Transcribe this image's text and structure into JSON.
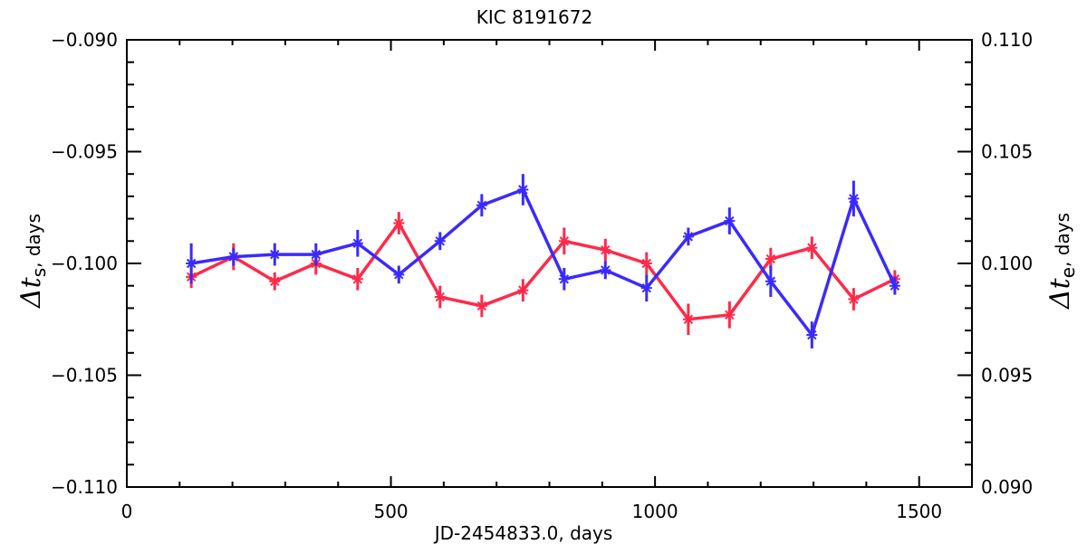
{
  "chart_data": {
    "type": "line",
    "title": "KIC 8191672",
    "xlabel": "JD-2454833.0, days",
    "ylabel_left": {
      "symbol": "Δt",
      "subscript": "s",
      "suffix": ", days"
    },
    "ylabel_right": {
      "symbol": "Δt",
      "subscript": "e",
      "suffix": ", days"
    },
    "xlim": [
      0,
      1600
    ],
    "ylim_left": [
      -0.09,
      -0.11
    ],
    "ylim_right": [
      0.11,
      0.09
    ],
    "x_ticks": [
      "0",
      "500",
      "1000",
      "1500"
    ],
    "y_ticks_left": [
      "-0.090",
      "-0.095",
      "-0.100",
      "-0.105",
      "-0.110"
    ],
    "y_ticks_right": [
      "0.110",
      "0.105",
      "0.100",
      "0.095",
      "0.090"
    ],
    "grid": false,
    "x": [
      122,
      202,
      280,
      358,
      437,
      515,
      593,
      672,
      750,
      828,
      906,
      984,
      1063,
      1141,
      1219,
      1297,
      1376,
      1454
    ],
    "series": [
      {
        "color": "#ff2a4a",
        "axis": "left",
        "values": [
          -0.1006,
          -0.0997,
          -0.1008,
          -0.1,
          -0.1007,
          -0.0982,
          -0.1015,
          -0.1019,
          -0.1012,
          -0.099,
          -0.0994,
          -0.1,
          -0.1025,
          -0.1023,
          -0.0998,
          -0.0993,
          -0.1016,
          -0.1007
        ],
        "errors": [
          0.0005,
          0.0006,
          0.0004,
          0.0005,
          0.0005,
          0.0005,
          0.0005,
          0.0005,
          0.0005,
          0.0006,
          0.0005,
          0.0005,
          0.0007,
          0.0006,
          0.0005,
          0.0005,
          0.0005,
          0.0004
        ]
      },
      {
        "color": "#3a2aff",
        "axis": "right",
        "values": [
          0.1,
          0.1003,
          0.1004,
          0.1004,
          0.1009,
          0.0995,
          0.101,
          0.1026,
          0.1033,
          0.0993,
          0.0997,
          0.0989,
          0.1012,
          0.1019,
          0.0992,
          0.0968,
          0.1029,
          0.099
        ],
        "errors": [
          0.0009,
          0.0004,
          0.0005,
          0.0005,
          0.0006,
          0.0004,
          0.0004,
          0.0005,
          0.0007,
          0.0005,
          0.0004,
          0.0006,
          0.0004,
          0.0006,
          0.0007,
          0.0006,
          0.0008,
          0.0004
        ]
      }
    ]
  }
}
